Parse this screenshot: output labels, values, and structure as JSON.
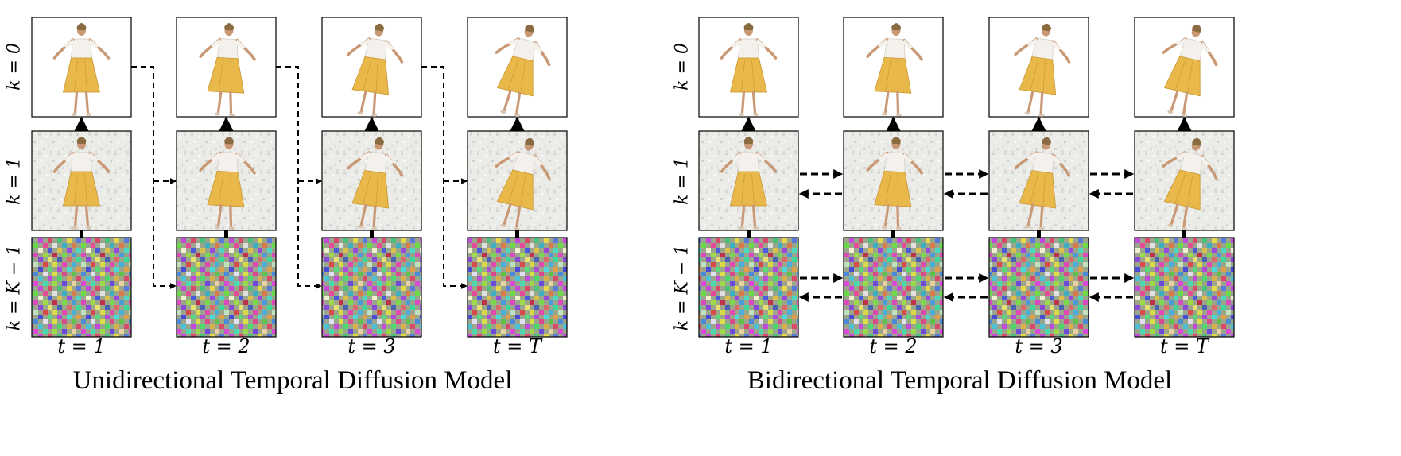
{
  "panels": [
    {
      "caption": "Unidirectional Temporal Diffusion Model",
      "row_labels": [
        "k = 0",
        "k = 1",
        "k = K − 1"
      ],
      "col_labels": [
        "t = 1",
        "t = 2",
        "t = 3",
        "t = T"
      ],
      "connection": "unidirectional"
    },
    {
      "caption": "Bidirectional Temporal Diffusion Model",
      "row_labels": [
        "k = 0",
        "k = 1",
        "k = K − 1"
      ],
      "col_labels": [
        "t = 1",
        "t = 2",
        "t = 3",
        "t = T"
      ],
      "connection": "bidirectional"
    }
  ],
  "colors": {
    "skirt": "#e8b84a",
    "shirt": "#f4f1ec",
    "skin": "#c99874",
    "hair": "#8a6a40",
    "noise_bg": "#e9e9e6",
    "frame": "#000000"
  }
}
